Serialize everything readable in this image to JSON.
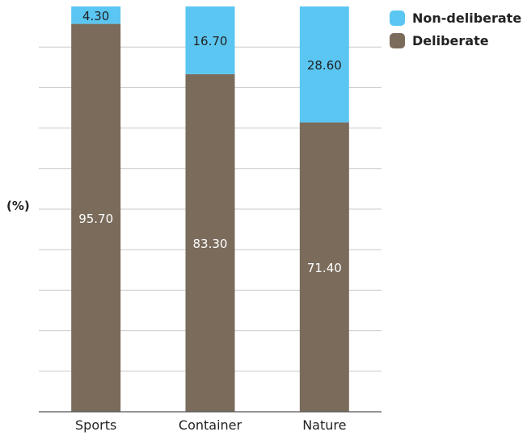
{
  "chart_data": {
    "type": "bar",
    "stacked": true,
    "ylabel": "(%)",
    "ylim": [
      0,
      100
    ],
    "grid": true,
    "legend_position": "top-right",
    "categories": [
      "Sports",
      "Container",
      "Nature"
    ],
    "series": [
      {
        "name": "Deliberate",
        "color": "#7a6b5b",
        "values": [
          95.7,
          83.3,
          71.4
        ],
        "labels": [
          "95.70",
          "83.30",
          "71.40"
        ]
      },
      {
        "name": "Non-deliberate",
        "color": "#5bc6f2",
        "values": [
          4.3,
          16.7,
          28.6
        ],
        "labels": [
          "4.30",
          "16.70",
          "28.60"
        ]
      }
    ]
  }
}
